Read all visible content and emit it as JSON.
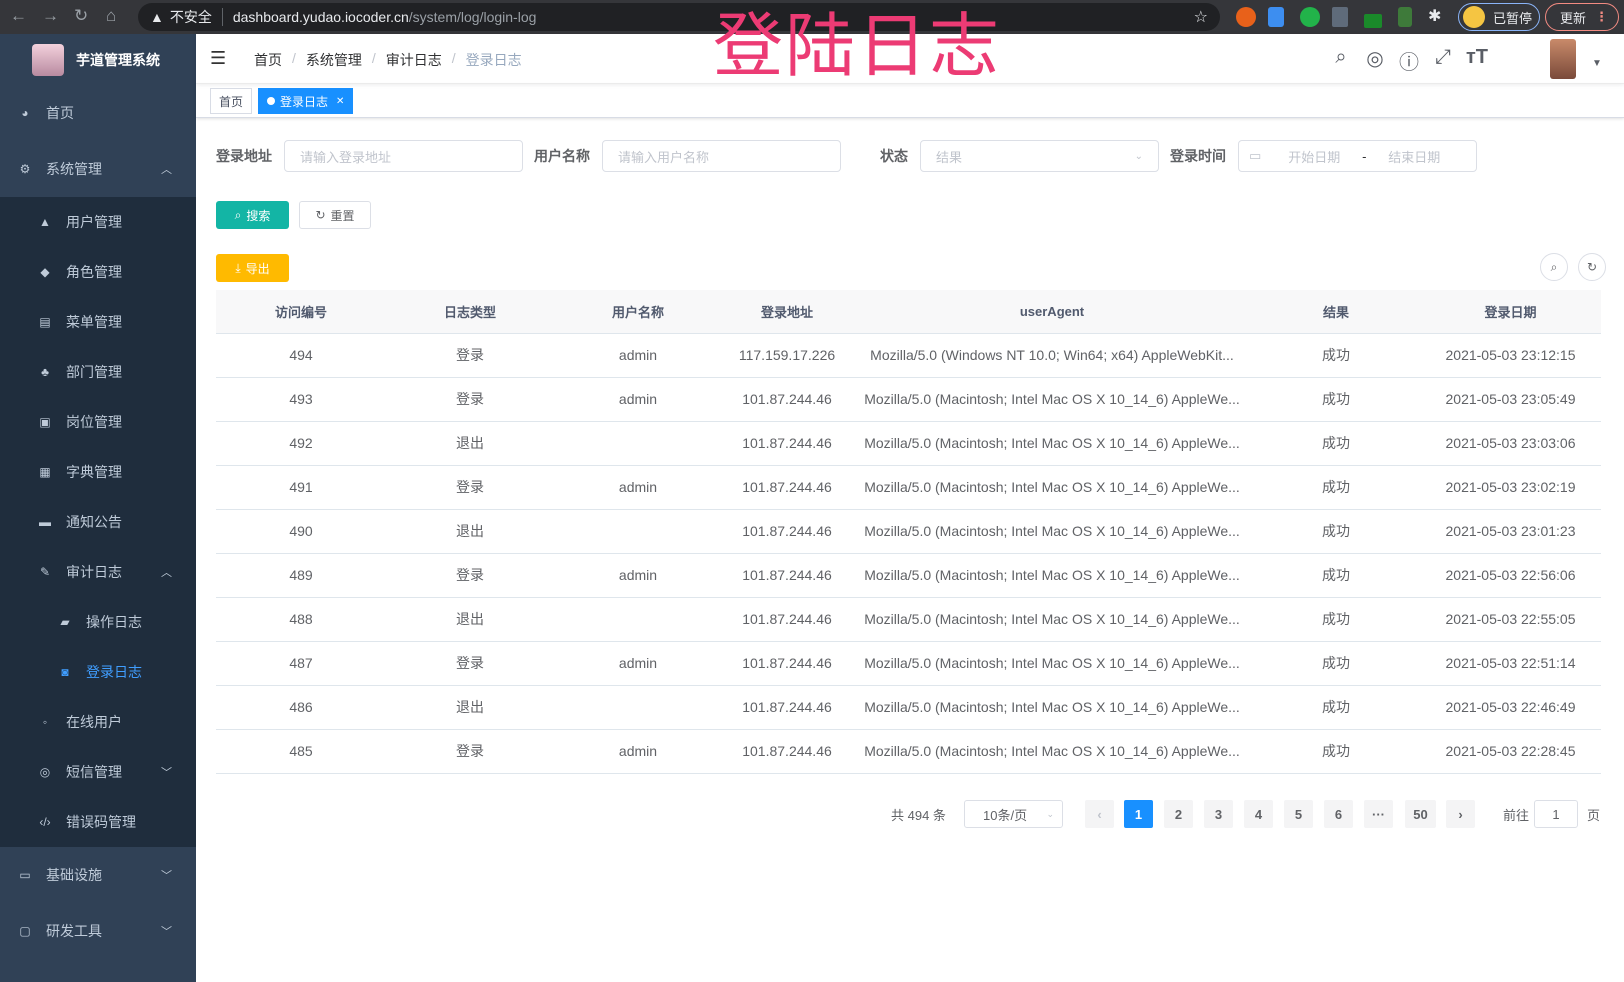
{
  "browser": {
    "security": "不安全",
    "host": "dashboard.yudao.iocoder.cn",
    "path": "/system/log/login-log",
    "profile": "已暂停",
    "update": "更新"
  },
  "overlay_title": "登陆日志",
  "sidebar": {
    "title": "芋道管理系统",
    "items": [
      {
        "label": "首页",
        "icon": "dashboard-icon",
        "level": 1
      },
      {
        "label": "系统管理",
        "icon": "gear-icon",
        "level": 1,
        "expanded": true
      },
      {
        "label": "用户管理",
        "icon": "user-icon",
        "level": 2
      },
      {
        "label": "角色管理",
        "icon": "peoples-icon",
        "level": 2
      },
      {
        "label": "菜单管理",
        "icon": "tree-table-icon",
        "level": 2
      },
      {
        "label": "部门管理",
        "icon": "tree-icon",
        "level": 2
      },
      {
        "label": "岗位管理",
        "icon": "post-icon",
        "level": 2
      },
      {
        "label": "字典管理",
        "icon": "dict-icon",
        "level": 2
      },
      {
        "label": "通知公告",
        "icon": "message-icon",
        "level": 2
      },
      {
        "label": "审计日志",
        "icon": "log-icon",
        "level": 2,
        "expanded": true
      },
      {
        "label": "操作日志",
        "icon": "form-icon",
        "level": 3
      },
      {
        "label": "登录日志",
        "icon": "logininfor-icon",
        "level": 3,
        "active": true
      },
      {
        "label": "在线用户",
        "icon": "online-icon",
        "level": 2
      },
      {
        "label": "短信管理",
        "icon": "shield-icon",
        "level": 2,
        "expanded": false
      },
      {
        "label": "错误码管理",
        "icon": "code-icon",
        "level": 2
      },
      {
        "label": "基础设施",
        "icon": "monitor-icon",
        "level": 1,
        "expanded": false
      },
      {
        "label": "研发工具",
        "icon": "tool-icon",
        "level": 1,
        "expanded": false
      }
    ]
  },
  "breadcrumb": [
    "首页",
    "系统管理",
    "审计日志",
    "登录日志"
  ],
  "tags": [
    {
      "label": "首页"
    },
    {
      "label": "登录日志",
      "active": true
    }
  ],
  "filters": {
    "address": {
      "label": "登录地址",
      "placeholder": "请输入登录地址"
    },
    "username": {
      "label": "用户名称",
      "placeholder": "请输入用户名称"
    },
    "status": {
      "label": "状态",
      "placeholder": "结果"
    },
    "time": {
      "label": "登录时间",
      "start": "开始日期",
      "sep": "-",
      "end": "结束日期"
    }
  },
  "buttons": {
    "search": "搜索",
    "reset": "重置",
    "export": "导出"
  },
  "colors": {
    "sidebar": "#304156",
    "primary": "#1890ff",
    "search": "#13b5a5",
    "export": "#ffba00",
    "overlay": "#ec3b74"
  },
  "table": {
    "columns": [
      "访问编号",
      "日志类型",
      "用户名称",
      "登录地址",
      "userAgent",
      "结果",
      "登录日期"
    ],
    "rows": [
      [
        "494",
        "登录",
        "admin",
        "117.159.17.226",
        "Mozilla/5.0 (Windows NT 10.0; Win64; x64) AppleWebKit...",
        "成功",
        "2021-05-03 23:12:15"
      ],
      [
        "493",
        "登录",
        "admin",
        "101.87.244.46",
        "Mozilla/5.0 (Macintosh; Intel Mac OS X 10_14_6) AppleWe...",
        "成功",
        "2021-05-03 23:05:49"
      ],
      [
        "492",
        "退出",
        "",
        "101.87.244.46",
        "Mozilla/5.0 (Macintosh; Intel Mac OS X 10_14_6) AppleWe...",
        "成功",
        "2021-05-03 23:03:06"
      ],
      [
        "491",
        "登录",
        "admin",
        "101.87.244.46",
        "Mozilla/5.0 (Macintosh; Intel Mac OS X 10_14_6) AppleWe...",
        "成功",
        "2021-05-03 23:02:19"
      ],
      [
        "490",
        "退出",
        "",
        "101.87.244.46",
        "Mozilla/5.0 (Macintosh; Intel Mac OS X 10_14_6) AppleWe...",
        "成功",
        "2021-05-03 23:01:23"
      ],
      [
        "489",
        "登录",
        "admin",
        "101.87.244.46",
        "Mozilla/5.0 (Macintosh; Intel Mac OS X 10_14_6) AppleWe...",
        "成功",
        "2021-05-03 22:56:06"
      ],
      [
        "488",
        "退出",
        "",
        "101.87.244.46",
        "Mozilla/5.0 (Macintosh; Intel Mac OS X 10_14_6) AppleWe...",
        "成功",
        "2021-05-03 22:55:05"
      ],
      [
        "487",
        "登录",
        "admin",
        "101.87.244.46",
        "Mozilla/5.0 (Macintosh; Intel Mac OS X 10_14_6) AppleWe...",
        "成功",
        "2021-05-03 22:51:14"
      ],
      [
        "486",
        "退出",
        "",
        "101.87.244.46",
        "Mozilla/5.0 (Macintosh; Intel Mac OS X 10_14_6) AppleWe...",
        "成功",
        "2021-05-03 22:46:49"
      ],
      [
        "485",
        "登录",
        "admin",
        "101.87.244.46",
        "Mozilla/5.0 (Macintosh; Intel Mac OS X 10_14_6) AppleWe...",
        "成功",
        "2021-05-03 22:28:45"
      ]
    ]
  },
  "pagination": {
    "total": "共 494 条",
    "page_size": "10条/页",
    "pages": [
      "1",
      "2",
      "3",
      "4",
      "5",
      "6",
      "···",
      "50"
    ],
    "current": "1",
    "goto_label": "前往",
    "goto_value": "1",
    "page_suffix": "页"
  }
}
